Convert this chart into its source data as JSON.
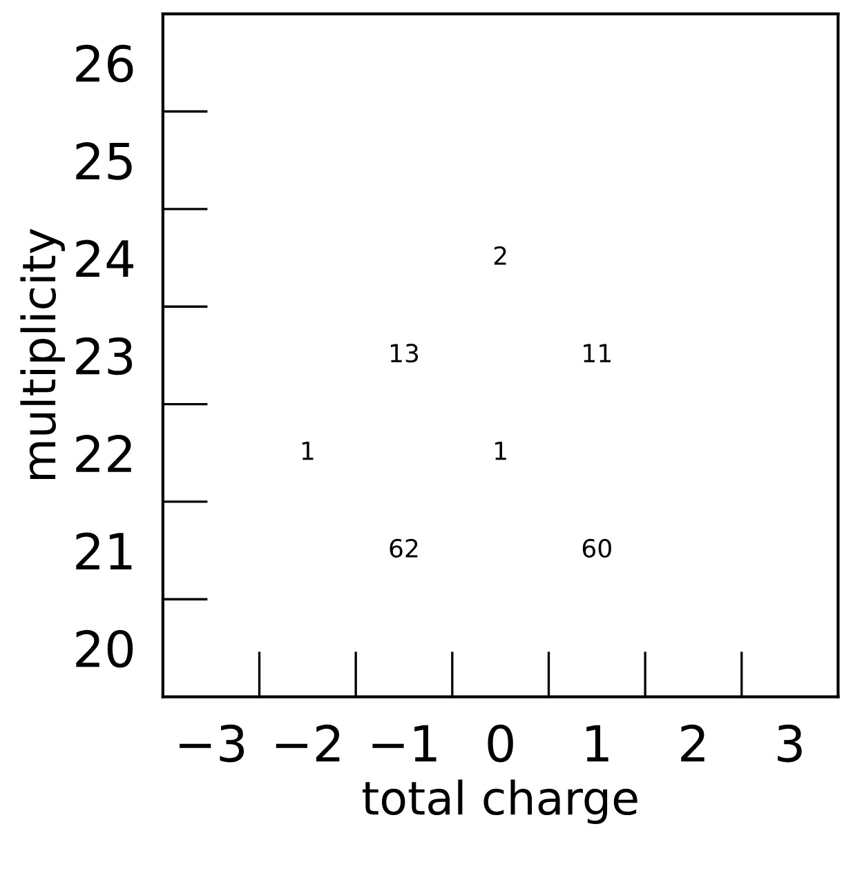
{
  "chart_data": {
    "type": "heatmap",
    "xlabel": "total charge",
    "ylabel": "multiplicity",
    "categories": [
      "−3",
      "−2",
      "−1",
      "0",
      "1",
      "2",
      "3"
    ],
    "y_categories": [
      "26",
      "25",
      "24",
      "23",
      "22",
      "21",
      "20"
    ],
    "cells": [
      [
        null,
        null,
        null,
        null,
        null,
        null,
        null
      ],
      [
        null,
        null,
        null,
        null,
        null,
        null,
        null
      ],
      [
        null,
        null,
        null,
        2,
        null,
        null,
        null
      ],
      [
        null,
        null,
        13,
        null,
        11,
        null,
        null
      ],
      [
        null,
        1,
        null,
        1,
        null,
        null,
        null
      ],
      [
        null,
        null,
        62,
        null,
        60,
        null,
        null
      ],
      [
        null,
        null,
        null,
        null,
        null,
        null,
        null
      ]
    ],
    "color": "#ffffff",
    "data_labels": true
  }
}
